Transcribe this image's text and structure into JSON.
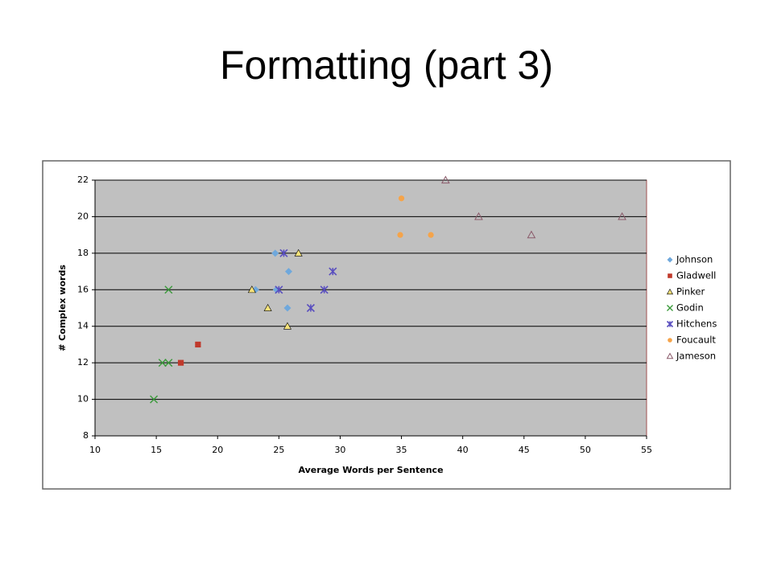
{
  "slide_title": "Formatting (part 3)",
  "chart_data": {
    "type": "scatter",
    "x_label": "Average Words per Sentence",
    "y_label": "# Complex words",
    "xlim": [
      10,
      55
    ],
    "xticks": [
      10,
      15,
      20,
      25,
      30,
      35,
      40,
      45,
      50,
      55
    ],
    "ylim": [
      8,
      22
    ],
    "yticks": [
      8,
      10,
      12,
      14,
      16,
      18,
      20,
      22
    ],
    "grid": true,
    "legend": "right",
    "plot_background": "#c0c0c0",
    "series": [
      {
        "name": "Johnson",
        "color": "#6fa8dc",
        "marker": "diamond",
        "x": [
          24.7,
          25.8,
          24.8,
          23.1,
          25.7
        ],
        "values": [
          18,
          17,
          16,
          16,
          15
        ]
      },
      {
        "name": "Gladwell",
        "color": "#c0392b",
        "marker": "square",
        "x": [
          18.4,
          17.0
        ],
        "values": [
          13,
          12
        ]
      },
      {
        "name": "Pinker",
        "color": "#f6e27a",
        "marker": "triangle",
        "x": [
          26.6,
          22.8,
          24.1,
          25.7
        ],
        "values": [
          18,
          16,
          15,
          14
        ]
      },
      {
        "name": "Godin",
        "color": "#3a9a3a",
        "marker": "x",
        "x": [
          16.0,
          15.5,
          16.0,
          14.8
        ],
        "values": [
          16,
          12,
          12,
          10
        ]
      },
      {
        "name": "Hitchens",
        "color": "#5a4fbf",
        "marker": "star",
        "x": [
          25.4,
          29.4,
          28.7,
          25.0,
          27.6
        ],
        "values": [
          18,
          17,
          16,
          16,
          15
        ]
      },
      {
        "name": "Foucault",
        "color": "#f5a44a",
        "marker": "circle",
        "x": [
          35.0,
          34.9,
          37.4
        ],
        "values": [
          21,
          19,
          19
        ]
      },
      {
        "name": "Jameson",
        "color": "#8a5a6a",
        "marker": "open-triangle",
        "x": [
          38.6,
          41.3,
          45.6,
          53.0
        ],
        "values": [
          22,
          20,
          19,
          20
        ]
      }
    ]
  }
}
